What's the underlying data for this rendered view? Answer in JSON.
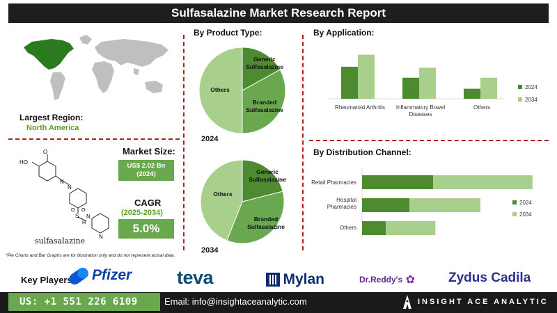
{
  "title": "Sulfasalazine Market Research Report",
  "region": {
    "label": "Largest Region:",
    "value": "North America"
  },
  "molecule": {
    "caption": "sulfasalazine",
    "atoms": {
      "o": "O",
      "ho": "HO",
      "n1": "N",
      "n2": "N",
      "s": "S",
      "h": "H",
      "n3": "N",
      "n4": "N",
      "o1": "O",
      "o2": "O"
    }
  },
  "market_size": {
    "label": "Market Size:",
    "value": "US$ 2.02 Bn",
    "year": "(2024)"
  },
  "cagr": {
    "label": "CAGR",
    "period": "(2025-2034)",
    "value": "5.0%"
  },
  "product_type": {
    "title": "By Product Type:",
    "labels": {
      "generic_1": "Generic",
      "generic_2": "Sulfasalazine",
      "branded_1": "Branded",
      "branded_2": "Sulfasalazine",
      "others": "Others"
    },
    "year_2024": "2024",
    "year_2034": "2034"
  },
  "application": {
    "title": "By Application:",
    "categories": [
      "Rheumatoid Arthritis",
      "Inflammatory Bowel Diseases",
      "Others"
    ],
    "cat_label_ibd_1": "Inflammatory Bowel",
    "cat_label_ibd_2": "Diseases",
    "legend_2024": "2024",
    "legend_2034": "2034"
  },
  "distribution": {
    "title": "By Distribution Channel:",
    "categories": [
      "Retail Pharmacies",
      "Hospital Pharmacies",
      "Others"
    ],
    "cat_label_hosp_1": "Hospital",
    "cat_label_hosp_2": "Pharmacies",
    "legend_2024": "2024",
    "legend_2034": "2034"
  },
  "footnote": "*Pie Charts and Bar Graphs are for illustration only and do not represent actual data.",
  "key_players": {
    "label": "Key Players:",
    "logos": [
      "Pfizer",
      "teva",
      "Mylan",
      "Dr.Reddy's",
      "Zydus Cadila"
    ]
  },
  "contact": {
    "phone": "US: +1 551 226 6109",
    "email": "Email: info@insightaceanalytic.com",
    "brand": "INSIGHT ACE ANALYTIC"
  },
  "colors": {
    "dark_green": "#4e8a2f",
    "mid_green": "#6aa84f",
    "light_green": "#a9cf8c",
    "divider_red": "#b51d1d"
  },
  "chart_data": [
    {
      "type": "pie",
      "title": "By Product Type:",
      "year": "2024",
      "labels": [
        "Generic Sulfasalazine",
        "Branded Sulfasalazine",
        "Others"
      ],
      "values": [
        17,
        33,
        50
      ]
    },
    {
      "type": "pie",
      "title": "By Product Type:",
      "year": "2034",
      "labels": [
        "Generic Sulfasalazine",
        "Branded Sulfasalazine",
        "Others"
      ],
      "values": [
        21,
        35,
        44
      ]
    },
    {
      "type": "bar",
      "title": "By Application:",
      "categories": [
        "Rheumatoid Arthritis",
        "Inflammatory Bowel Diseases",
        "Others"
      ],
      "series": [
        {
          "name": "2024",
          "values": [
            3.2,
            2.1,
            1.0
          ]
        },
        {
          "name": "2034",
          "values": [
            4.4,
            3.1,
            2.1
          ]
        }
      ]
    },
    {
      "type": "bar",
      "orientation": "horizontal",
      "title": "By Distribution Channel:",
      "categories": [
        "Retail Pharmacies",
        "Hospital Pharmacies",
        "Others"
      ],
      "series": [
        {
          "name": "2024",
          "values": [
            3.0,
            2.0,
            1.0
          ]
        },
        {
          "name": "2034",
          "values": [
            4.2,
            3.0,
            2.1
          ]
        }
      ]
    }
  ]
}
